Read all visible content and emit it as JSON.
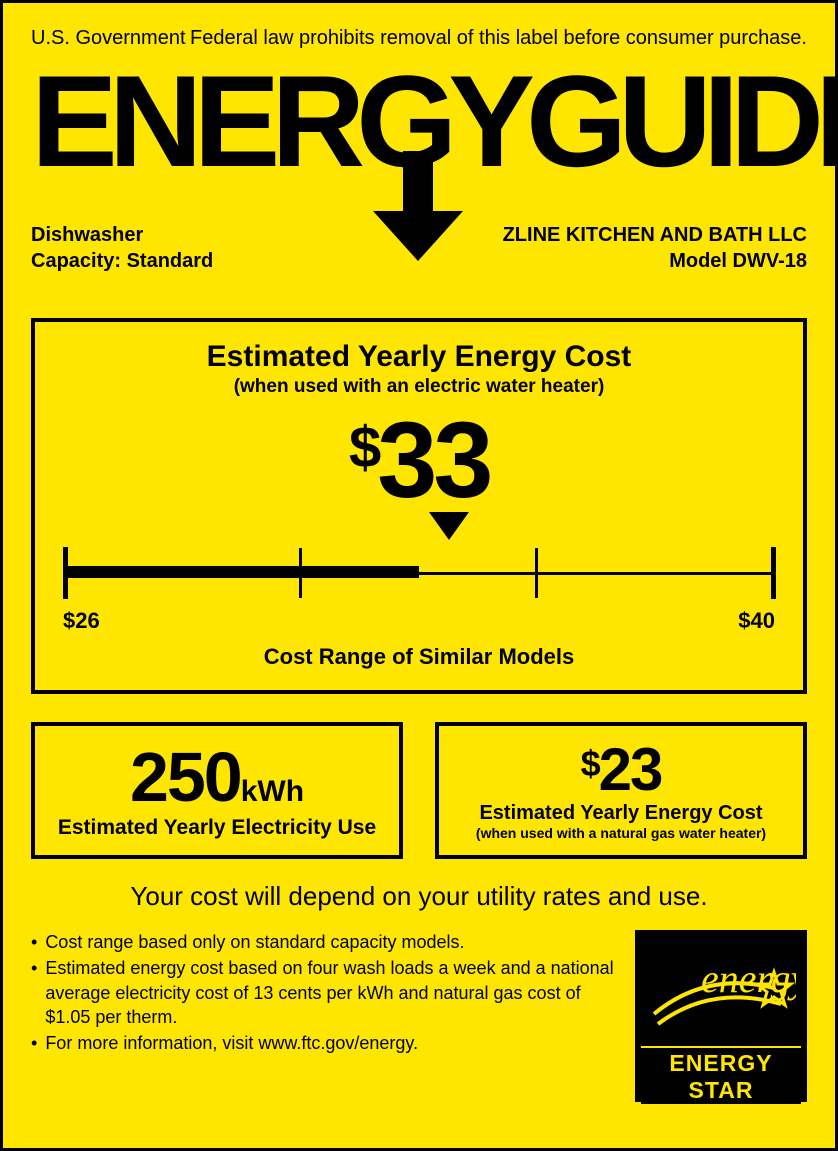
{
  "colors": {
    "bg": "#ffe600",
    "fg": "#000000"
  },
  "top": {
    "gov": "U.S. Government",
    "law": "Federal law prohibits removal of this label before consumer purchase."
  },
  "logo": {
    "text": "ENERGYGUIDE"
  },
  "product": {
    "type": "Dishwasher",
    "capacity": "Capacity: Standard",
    "mfr": "ZLINE KITCHEN AND BATH LLC",
    "model": "Model DWV-18"
  },
  "main": {
    "title": "Estimated Yearly Energy Cost",
    "subtitle": "(when used with an electric water heater)",
    "cost_dollar": "$",
    "cost_value": "33",
    "range_min": "$26",
    "range_max": "$40",
    "range_label": "Cost Range of Similar Models",
    "scale": {
      "min": 26,
      "max": 40,
      "value": 33,
      "ticks": [
        26,
        30.67,
        35.33,
        40
      ]
    }
  },
  "left_box": {
    "value": "250",
    "unit": "kWh",
    "label": "Estimated Yearly Electricity Use"
  },
  "right_box": {
    "dollar": "$",
    "value": "23",
    "label": "Estimated Yearly Energy Cost",
    "sub": "(when used with a natural gas water heater)"
  },
  "depends": "Your cost will depend on your utility rates and use.",
  "bullets": [
    "Cost range based only on standard capacity models.",
    "Estimated energy cost based on four wash loads a week and a national average electricity cost of 13 cents per kWh and natural gas cost of $1.05 per therm.",
    "For more information, visit www.ftc.gov/energy."
  ],
  "energystar": "ENERGY STAR"
}
